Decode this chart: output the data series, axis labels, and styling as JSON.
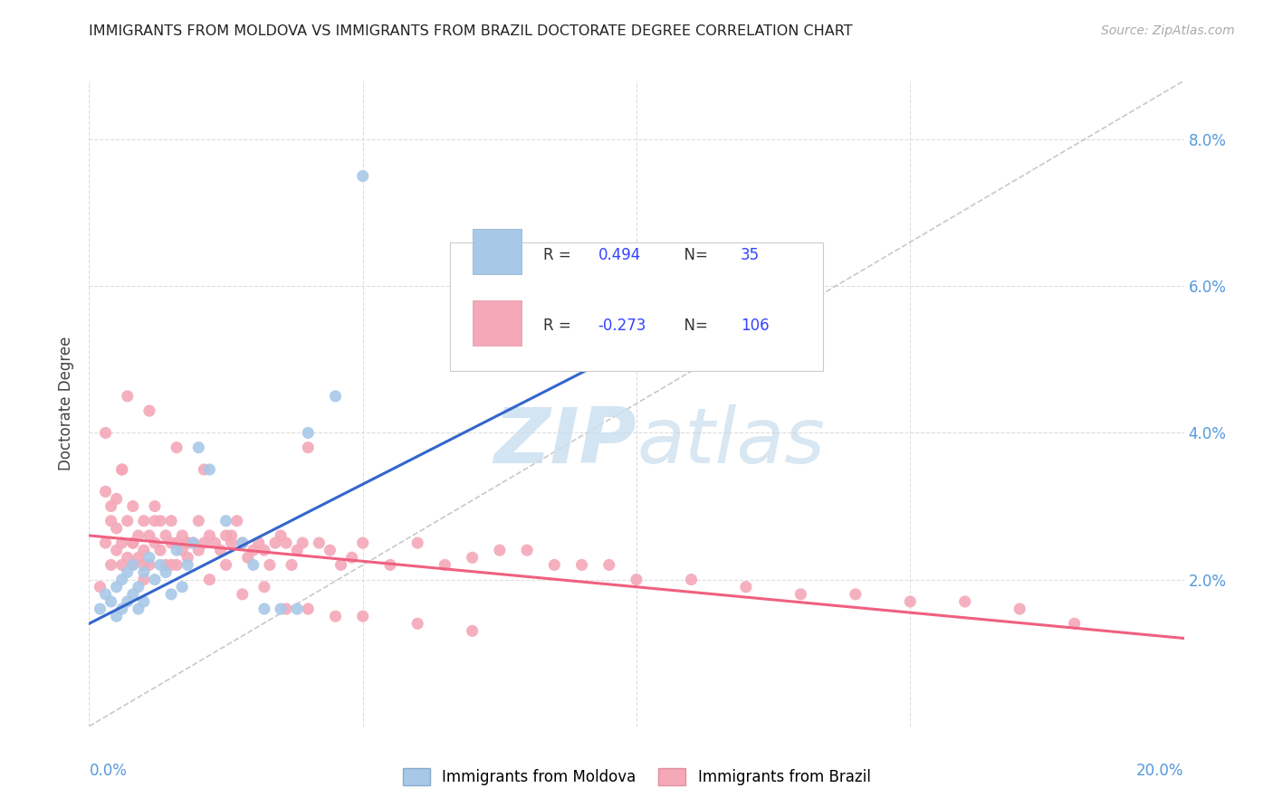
{
  "title": "IMMIGRANTS FROM MOLDOVA VS IMMIGRANTS FROM BRAZIL DOCTORATE DEGREE CORRELATION CHART",
  "source": "Source: ZipAtlas.com",
  "ylabel": "Doctorate Degree",
  "xmin": 0.0,
  "xmax": 0.2,
  "ymin": 0.0,
  "ymax": 0.088,
  "yticks": [
    0.02,
    0.04,
    0.06,
    0.08
  ],
  "ytick_labels": [
    "2.0%",
    "4.0%",
    "6.0%",
    "8.0%"
  ],
  "xtick_labels": [
    "0.0%",
    "",
    "",
    "",
    "20.0%"
  ],
  "xticks": [
    0.0,
    0.05,
    0.1,
    0.15,
    0.2
  ],
  "moldova_R": 0.494,
  "moldova_N": 35,
  "brazil_R": -0.273,
  "brazil_N": 106,
  "moldova_color": "#a8c8e8",
  "brazil_color": "#f4a8b8",
  "moldova_line_color": "#3366cc",
  "brazil_line_color": "#f06080",
  "diagonal_color": "#bbbbbb",
  "background_color": "#ffffff",
  "grid_color": "#dddddd",
  "legend_R_color": "#3344ff",
  "moldova_scatter_x": [
    0.002,
    0.003,
    0.004,
    0.005,
    0.005,
    0.006,
    0.006,
    0.007,
    0.007,
    0.008,
    0.008,
    0.009,
    0.009,
    0.01,
    0.01,
    0.011,
    0.012,
    0.013,
    0.014,
    0.015,
    0.016,
    0.017,
    0.018,
    0.019,
    0.02,
    0.022,
    0.025,
    0.028,
    0.03,
    0.032,
    0.035,
    0.038,
    0.04,
    0.045,
    0.05
  ],
  "moldova_scatter_y": [
    0.016,
    0.018,
    0.017,
    0.015,
    0.019,
    0.016,
    0.02,
    0.017,
    0.021,
    0.018,
    0.022,
    0.016,
    0.019,
    0.017,
    0.021,
    0.023,
    0.02,
    0.022,
    0.021,
    0.018,
    0.024,
    0.019,
    0.022,
    0.025,
    0.038,
    0.035,
    0.028,
    0.025,
    0.022,
    0.016,
    0.016,
    0.016,
    0.04,
    0.045,
    0.075
  ],
  "brazil_scatter_x": [
    0.002,
    0.003,
    0.003,
    0.004,
    0.004,
    0.005,
    0.005,
    0.005,
    0.006,
    0.006,
    0.006,
    0.007,
    0.007,
    0.008,
    0.008,
    0.008,
    0.009,
    0.009,
    0.01,
    0.01,
    0.01,
    0.011,
    0.011,
    0.012,
    0.012,
    0.013,
    0.013,
    0.014,
    0.014,
    0.015,
    0.015,
    0.016,
    0.016,
    0.017,
    0.017,
    0.018,
    0.018,
    0.019,
    0.02,
    0.02,
    0.021,
    0.022,
    0.023,
    0.024,
    0.025,
    0.026,
    0.027,
    0.028,
    0.029,
    0.03,
    0.031,
    0.032,
    0.033,
    0.034,
    0.035,
    0.036,
    0.037,
    0.038,
    0.039,
    0.04,
    0.042,
    0.044,
    0.046,
    0.048,
    0.05,
    0.055,
    0.06,
    0.065,
    0.07,
    0.075,
    0.08,
    0.085,
    0.09,
    0.095,
    0.1,
    0.11,
    0.12,
    0.13,
    0.14,
    0.15,
    0.16,
    0.17,
    0.18,
    0.004,
    0.006,
    0.008,
    0.01,
    0.012,
    0.015,
    0.018,
    0.022,
    0.025,
    0.028,
    0.032,
    0.036,
    0.04,
    0.045,
    0.05,
    0.06,
    0.07,
    0.003,
    0.007,
    0.011,
    0.016,
    0.021,
    0.026
  ],
  "brazil_scatter_y": [
    0.019,
    0.032,
    0.025,
    0.028,
    0.022,
    0.024,
    0.027,
    0.031,
    0.025,
    0.022,
    0.035,
    0.028,
    0.023,
    0.025,
    0.022,
    0.03,
    0.026,
    0.023,
    0.024,
    0.022,
    0.028,
    0.026,
    0.022,
    0.025,
    0.03,
    0.028,
    0.024,
    0.026,
    0.022,
    0.025,
    0.028,
    0.025,
    0.022,
    0.024,
    0.026,
    0.025,
    0.023,
    0.025,
    0.024,
    0.028,
    0.025,
    0.026,
    0.025,
    0.024,
    0.026,
    0.025,
    0.028,
    0.025,
    0.023,
    0.024,
    0.025,
    0.024,
    0.022,
    0.025,
    0.026,
    0.025,
    0.022,
    0.024,
    0.025,
    0.038,
    0.025,
    0.024,
    0.022,
    0.023,
    0.025,
    0.022,
    0.025,
    0.022,
    0.023,
    0.024,
    0.024,
    0.022,
    0.022,
    0.022,
    0.02,
    0.02,
    0.019,
    0.018,
    0.018,
    0.017,
    0.017,
    0.016,
    0.014,
    0.03,
    0.035,
    0.025,
    0.02,
    0.028,
    0.022,
    0.025,
    0.02,
    0.022,
    0.018,
    0.019,
    0.016,
    0.016,
    0.015,
    0.015,
    0.014,
    0.013,
    0.04,
    0.045,
    0.043,
    0.038,
    0.035,
    0.026
  ],
  "moldova_line_x": [
    0.0,
    0.1
  ],
  "moldova_line_y": [
    0.014,
    0.052
  ],
  "brazil_line_x": [
    0.0,
    0.2
  ],
  "brazil_line_y": [
    0.026,
    0.012
  ]
}
